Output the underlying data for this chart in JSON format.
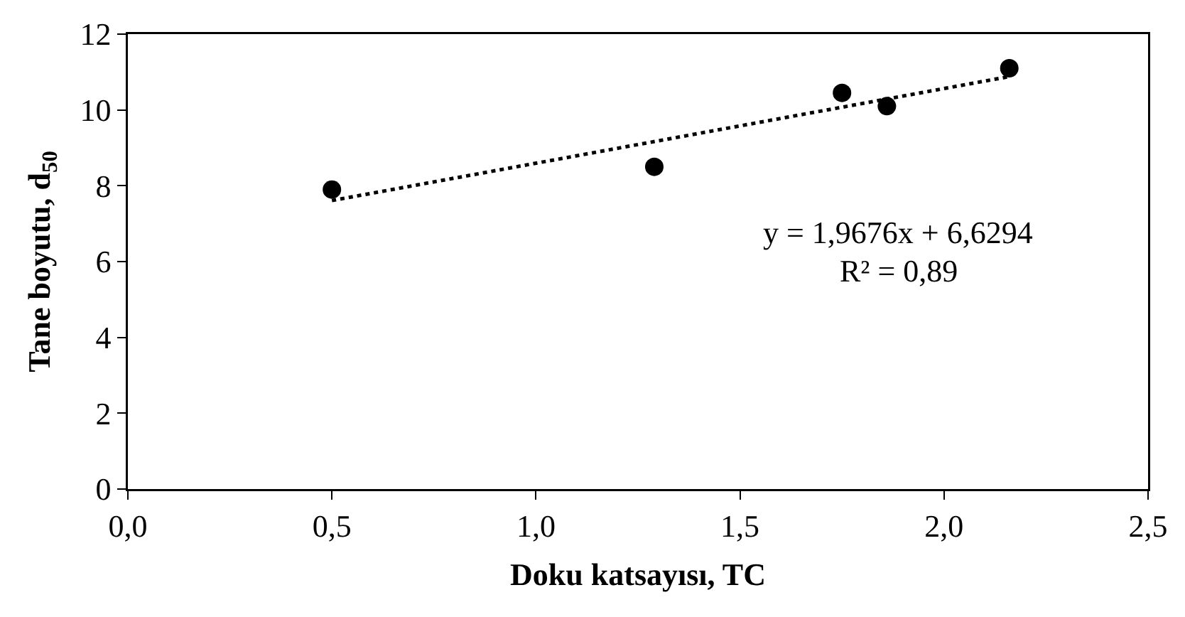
{
  "chart_data": {
    "type": "scatter",
    "xlabel": "Doku katsayısı, TC",
    "ylabel": "Tane boyutu, d$_{50}$",
    "xlim": [
      0,
      2.5
    ],
    "xticks": [
      {
        "value": 0,
        "label": "0,0"
      },
      {
        "value": 0.5,
        "label": "0,5"
      },
      {
        "value": 1,
        "label": "1,0"
      },
      {
        "value": 1.5,
        "label": "1,5"
      },
      {
        "value": 2,
        "label": "2,0"
      },
      {
        "value": 2.5,
        "label": "2,5"
      }
    ],
    "ylim": [
      0,
      12
    ],
    "yticks": [
      0,
      2,
      4,
      6,
      8,
      10,
      12
    ],
    "grid": false,
    "marker": "circle",
    "series": [
      {
        "color": "#000000",
        "x": [
          0.5,
          1.29,
          1.75,
          1.86,
          2.16
        ],
        "values": [
          7.9,
          8.5,
          10.45,
          10.1,
          11.1
        ]
      },
      {
        "type": "line",
        "color": "#000000",
        "line_style": "dotted",
        "marker": "none",
        "x": [
          0.5,
          2.16
        ],
        "values": [
          7.61,
          10.88
        ]
      }
    ],
    "annotations": [
      "y = 1,9676x + 6,6294",
      "R² = 0,89"
    ]
  }
}
